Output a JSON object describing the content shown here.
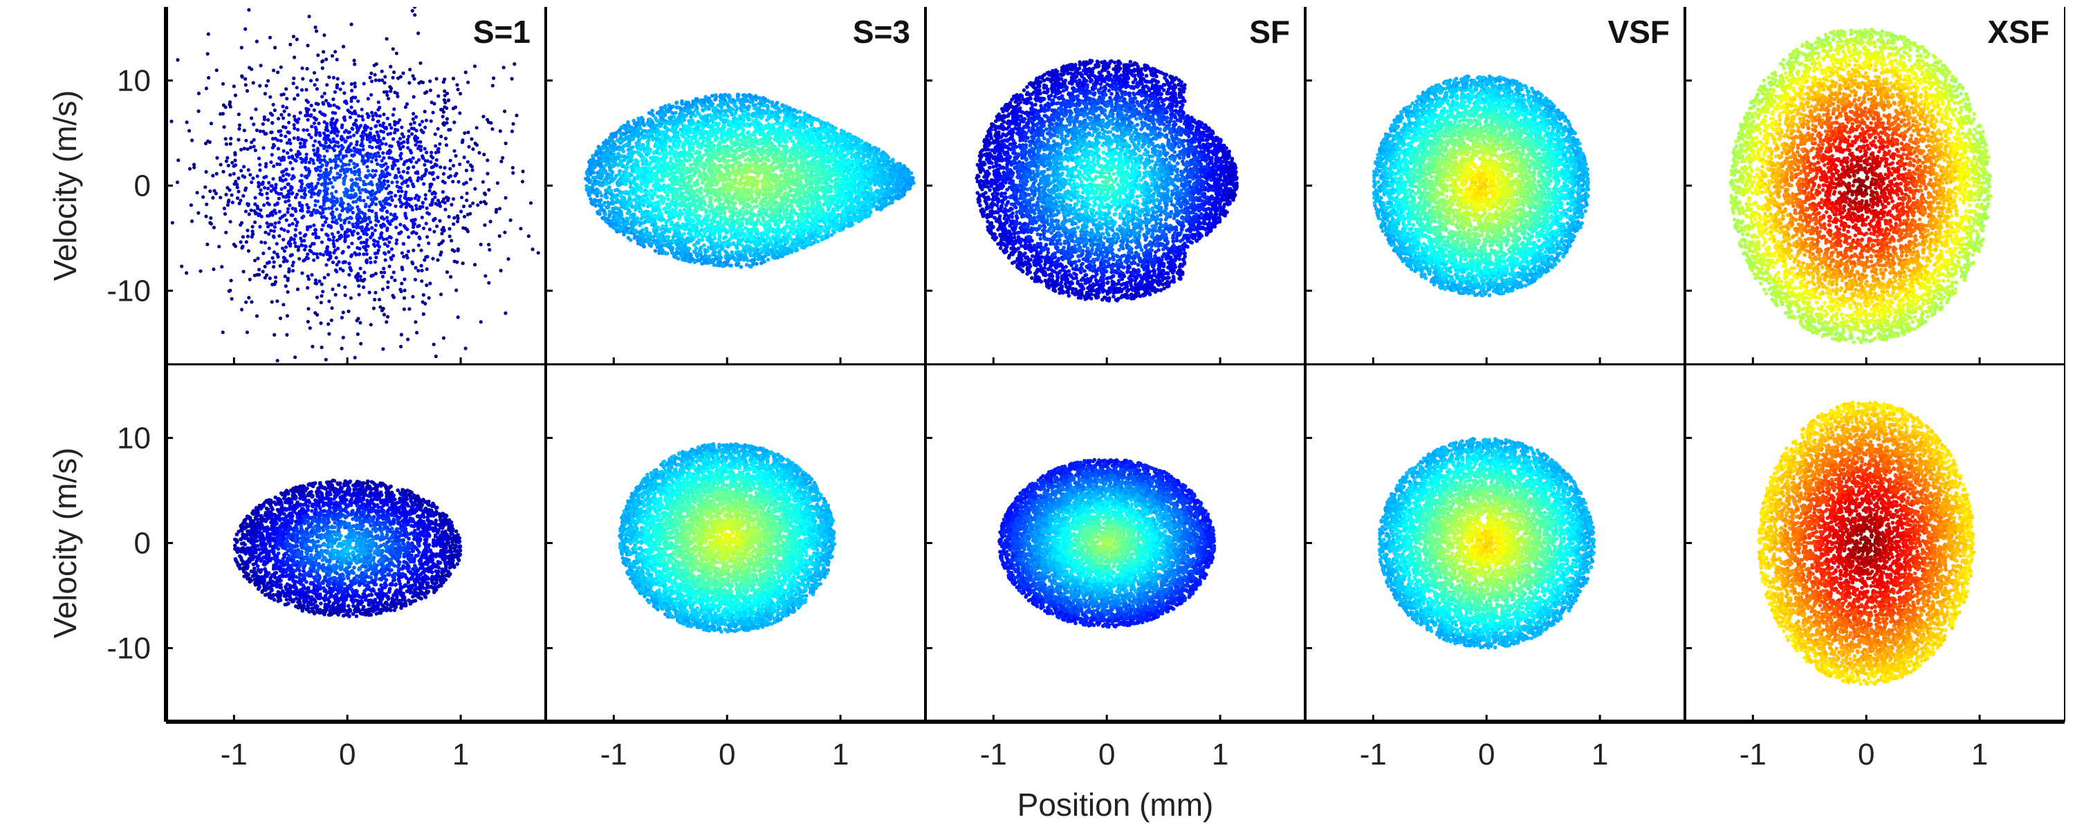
{
  "chart_data": {
    "type": "scatter",
    "layout": {
      "rows": 2,
      "cols": 5,
      "shared_axes": true
    },
    "xlabel": "Position (mm)",
    "ylabel": "Velocity (m/s)",
    "xlim": [
      -1.6,
      1.75
    ],
    "ylim": [
      -17,
      17
    ],
    "xticks": [
      -1,
      0,
      1
    ],
    "yticks": [
      -10,
      0,
      10
    ],
    "grid": false,
    "legend": "none",
    "color_map": [
      "#00008f",
      "#0000ff",
      "#0080ff",
      "#00ffff",
      "#80ff80",
      "#ffff00",
      "#ff8000",
      "#ff0000",
      "#800000"
    ],
    "column_titles": [
      "S=1",
      "S=3",
      "SF",
      "VSF",
      "XSF"
    ],
    "rows": [
      {
        "panels": [
          {
            "title": "S=1",
            "shape": {
              "cx": 0.0,
              "cy": 0.0,
              "rx": 1.3,
              "ry": 13.0
            },
            "density": "sparse",
            "color_range": [
              0.0,
              0.22
            ]
          },
          {
            "title": "S=3",
            "shape": {
              "cx": 0.2,
              "cy": 0.5,
              "rx": 1.45,
              "ry": 8.3,
              "taper": "right"
            },
            "density": "dense",
            "color_range": [
              0.28,
              0.55
            ]
          },
          {
            "title": "SF",
            "shape": {
              "cx": 0.0,
              "cy": 0.5,
              "rx": 1.15,
              "ry": 11.5,
              "tail": "right"
            },
            "density": "dense",
            "color_range": [
              0.08,
              0.45
            ]
          },
          {
            "title": "VSF",
            "shape": {
              "cx": -0.05,
              "cy": 0.0,
              "rx": 0.95,
              "ry": 10.5,
              "arc": "right"
            },
            "density": "dense",
            "color_range": [
              0.3,
              0.68
            ]
          },
          {
            "title": "XSF",
            "shape": {
              "cx": -0.05,
              "cy": 0.0,
              "rx": 1.15,
              "ry": 15.0,
              "arc": "right"
            },
            "density": "dense",
            "color_range": [
              0.55,
              1.0
            ]
          }
        ]
      },
      {
        "panels": [
          {
            "shape": {
              "cx": 0.0,
              "cy": -0.5,
              "rx": 1.0,
              "ry": 6.5
            },
            "density": "medium",
            "color_range": [
              0.05,
              0.32
            ]
          },
          {
            "shape": {
              "cx": 0.0,
              "cy": 0.5,
              "rx": 0.95,
              "ry": 9.0
            },
            "density": "dense",
            "color_range": [
              0.3,
              0.62
            ]
          },
          {
            "shape": {
              "cx": 0.0,
              "cy": 0.0,
              "rx": 0.95,
              "ry": 8.0
            },
            "density": "dense",
            "color_range": [
              0.15,
              0.55
            ]
          },
          {
            "shape": {
              "cx": 0.0,
              "cy": 0.0,
              "rx": 0.95,
              "ry": 10.0
            },
            "density": "dense",
            "color_range": [
              0.3,
              0.68
            ]
          },
          {
            "shape": {
              "cx": 0.0,
              "cy": 0.0,
              "rx": 0.95,
              "ry": 13.5
            },
            "density": "dense",
            "color_range": [
              0.65,
              1.0
            ]
          }
        ]
      }
    ]
  }
}
